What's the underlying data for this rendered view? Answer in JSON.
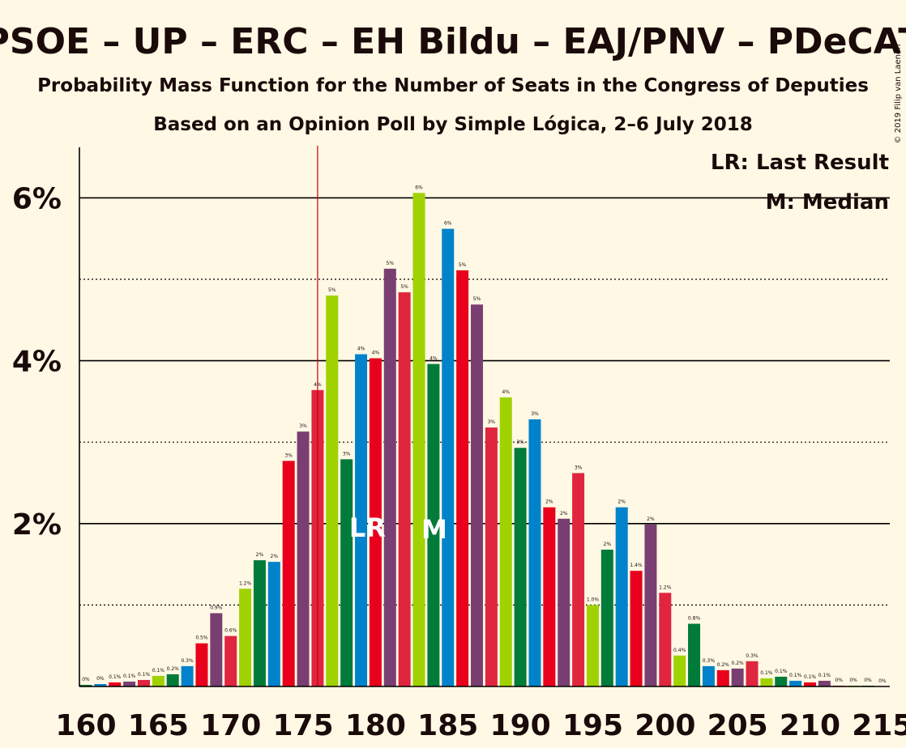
{
  "title": "PSOE – UP – ERC – EH Bildu – EAJ/PNV – PDeCAT",
  "subtitle": "Probability Mass Function for the Number of Seats in the Congress of Deputies",
  "subtitle2": "Based on an Opinion Poll by Simple Lógica, 2–6 July 2018",
  "copyright": "© 2019 Filip van Laenen",
  "legend": {
    "lr": "LR: Last Result",
    "m": "M: Median"
  },
  "markers": {
    "lr_label": "LR",
    "m_label": "M"
  },
  "colors": {
    "background": "#FFF8E4",
    "red": "#E8001C",
    "purple": "#7A3F72",
    "crimson": "#E0253F",
    "lime": "#9FD200",
    "green": "#007B3A",
    "blue": "#0083CB",
    "last_result_line": "#CC0000"
  },
  "chart_data": {
    "type": "bar",
    "x": [
      160,
      161,
      162,
      163,
      164,
      165,
      166,
      167,
      168,
      169,
      170,
      171,
      172,
      173,
      174,
      175,
      176,
      177,
      178,
      179,
      180,
      181,
      182,
      183,
      184,
      185,
      186,
      187,
      188,
      189,
      190,
      191,
      192,
      193,
      194,
      195,
      196,
      197,
      198,
      199,
      200,
      201,
      202,
      203,
      204,
      205,
      206,
      207,
      208,
      209,
      210,
      211,
      212,
      213,
      214,
      215
    ],
    "values": [
      0.02,
      0.03,
      0.05,
      0.06,
      0.08,
      0.13,
      0.15,
      0.25,
      0.53,
      0.9,
      0.62,
      1.2,
      1.55,
      1.53,
      2.77,
      3.13,
      3.64,
      4.8,
      2.79,
      4.08,
      4.03,
      5.13,
      4.84,
      6.06,
      3.96,
      5.62,
      5.11,
      4.69,
      3.18,
      3.55,
      2.93,
      3.28,
      2.2,
      2.06,
      2.62,
      1.0,
      1.68,
      2.2,
      1.42,
      1.99,
      1.15,
      0.38,
      0.77,
      0.25,
      0.2,
      0.22,
      0.31,
      0.1,
      0.12,
      0.07,
      0.05,
      0.07,
      0.01,
      0.01,
      0.01,
      0.0
    ],
    "labels": [
      "0%",
      "0%",
      "0.1%",
      "0.1%",
      "0.1%",
      "0.1%",
      "0.2%",
      "0.3%",
      "0.5%",
      "0.9%",
      "0.6%",
      "1.2%",
      "2%",
      "2%",
      "3%",
      "3%",
      "4%",
      "5%",
      "3%",
      "4%",
      "4%",
      "5%",
      "5%",
      "6%",
      "4%",
      "6%",
      "5%",
      "5%",
      "3%",
      "4%",
      "3%",
      "3%",
      "2%",
      "2%",
      "3%",
      "1.0%",
      "2%",
      "2%",
      "1.4%",
      "2%",
      "1.2%",
      "0.4%",
      "0.8%",
      "0.3%",
      "0.2%",
      "0.2%",
      "0.3%",
      "0.1%",
      "0.1%",
      "0.1%",
      "0.1%",
      "0.1%",
      "0%",
      "0%",
      "0%",
      "0%"
    ],
    "bar_colors": [
      "green",
      "blue",
      "red",
      "purple",
      "crimson",
      "lime",
      "green",
      "blue",
      "red",
      "purple",
      "crimson",
      "lime",
      "green",
      "blue",
      "red",
      "purple",
      "crimson",
      "lime",
      "green",
      "blue",
      "red",
      "purple",
      "crimson",
      "lime",
      "green",
      "blue",
      "red",
      "purple",
      "crimson",
      "lime",
      "green",
      "blue",
      "red",
      "purple",
      "crimson",
      "lime",
      "green",
      "blue",
      "red",
      "purple",
      "crimson",
      "lime",
      "green",
      "blue",
      "red",
      "purple",
      "crimson",
      "lime",
      "green",
      "blue",
      "red",
      "purple",
      "crimson",
      "lime",
      "green",
      "blue"
    ],
    "x_ticks": [
      160,
      165,
      170,
      175,
      180,
      185,
      190,
      195,
      200,
      205,
      210,
      215
    ],
    "y_ticks": [
      {
        "value": 2,
        "label": "2%"
      },
      {
        "value": 4,
        "label": "4%"
      },
      {
        "value": 6,
        "label": "6%"
      }
    ],
    "minor_gridlines": [
      1,
      3,
      5
    ],
    "ylim": [
      0,
      6.6
    ],
    "last_result": 176,
    "median": 184,
    "grid": true,
    "legend_placement": "top-right"
  }
}
